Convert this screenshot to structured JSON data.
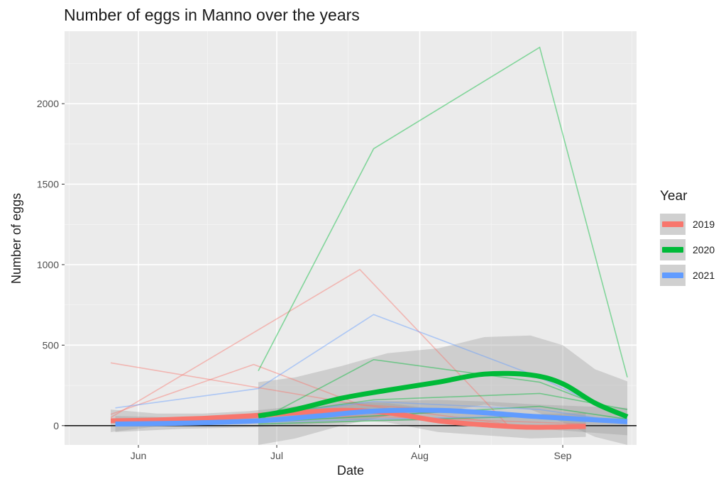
{
  "chart_data": {
    "type": "line",
    "title": "Number of eggs in Manno over the years",
    "xlabel": "Date",
    "ylabel": "Number of eggs",
    "x_ticks": [
      "Jun",
      "Jul",
      "Aug",
      "Sep"
    ],
    "y_ticks": [
      0,
      500,
      1000,
      1500,
      2000
    ],
    "xlim": [
      "2000-05-16",
      "2000-09-17"
    ],
    "ylim": [
      -120,
      2450
    ],
    "grid": true,
    "legend_title": "Year",
    "legend_position": "right",
    "reference_line": 0,
    "series": [
      {
        "name": "2019",
        "color": "#F8766D"
      },
      {
        "name": "2020",
        "color": "#00BA38"
      },
      {
        "name": "2021",
        "color": "#619CFF"
      }
    ],
    "traces": [
      {
        "year": "2019",
        "x": [
          "2000-05-26",
          "2000-07-19",
          "2000-08-20"
        ],
        "y": [
          390,
          130,
          70
        ]
      },
      {
        "year": "2019",
        "x": [
          "2000-05-26",
          "2000-06-26",
          "2000-07-19",
          "2000-08-20"
        ],
        "y": [
          70,
          380,
          130,
          10
        ]
      },
      {
        "year": "2019",
        "x": [
          "2000-05-26",
          "2000-07-19",
          "2000-08-20"
        ],
        "y": [
          50,
          970,
          5
        ]
      },
      {
        "year": "2019",
        "x": [
          "2000-05-26",
          "2000-07-19",
          "2000-09-06"
        ],
        "y": [
          20,
          60,
          10
        ]
      },
      {
        "year": "2020",
        "x": [
          "2000-06-27",
          "2000-07-22",
          "2000-08-27",
          "2000-09-15"
        ],
        "y": [
          340,
          1720,
          2350,
          300
        ]
      },
      {
        "year": "2020",
        "x": [
          "2000-06-27",
          "2000-07-22",
          "2000-08-27",
          "2000-09-15"
        ],
        "y": [
          30,
          410,
          270,
          60
        ]
      },
      {
        "year": "2020",
        "x": [
          "2000-06-27",
          "2000-07-22",
          "2000-08-27",
          "2000-09-15"
        ],
        "y": [
          60,
          160,
          200,
          100
        ]
      },
      {
        "year": "2020",
        "x": [
          "2000-06-27",
          "2000-07-22",
          "2000-08-27",
          "2000-09-15"
        ],
        "y": [
          20,
          60,
          120,
          40
        ]
      },
      {
        "year": "2020",
        "x": [
          "2000-06-27",
          "2000-07-22",
          "2000-08-27",
          "2000-09-15"
        ],
        "y": [
          10,
          30,
          60,
          20
        ]
      },
      {
        "year": "2021",
        "x": [
          "2000-05-27",
          "2000-06-27",
          "2000-07-22",
          "2000-08-27",
          "2000-09-15"
        ],
        "y": [
          110,
          230,
          690,
          300,
          40
        ]
      },
      {
        "year": "2021",
        "x": [
          "2000-05-27",
          "2000-06-27",
          "2000-07-22",
          "2000-08-27",
          "2000-09-15"
        ],
        "y": [
          30,
          60,
          150,
          100,
          20
        ]
      },
      {
        "year": "2021",
        "x": [
          "2000-05-27",
          "2000-06-27",
          "2000-07-22",
          "2000-08-27",
          "2000-09-15"
        ],
        "y": [
          10,
          20,
          40,
          60,
          10
        ]
      }
    ],
    "smooths": [
      {
        "year": "2019",
        "x": [
          "2000-05-26",
          "2000-06-05",
          "2000-06-15",
          "2000-06-25",
          "2000-07-05",
          "2000-07-15",
          "2000-07-25",
          "2000-08-05",
          "2000-08-15",
          "2000-08-25",
          "2000-09-06"
        ],
        "y": [
          30,
          35,
          45,
          60,
          80,
          95,
          80,
          30,
          5,
          -10,
          -5
        ],
        "ci_upper": [
          100,
          75,
          75,
          90,
          120,
          150,
          140,
          100,
          70,
          70,
          80
        ],
        "ci_lower": [
          -40,
          -5,
          15,
          30,
          40,
          40,
          20,
          -40,
          -60,
          -80,
          -70
        ]
      },
      {
        "year": "2020",
        "x": [
          "2000-06-27",
          "2000-07-05",
          "2000-07-15",
          "2000-07-25",
          "2000-08-05",
          "2000-08-15",
          "2000-08-25",
          "2000-09-01",
          "2000-09-08",
          "2000-09-15"
        ],
        "y": [
          60,
          100,
          170,
          220,
          270,
          320,
          315,
          260,
          140,
          55
        ],
        "ci_upper": [
          270,
          300,
          370,
          450,
          480,
          550,
          560,
          500,
          350,
          275
        ],
        "ci_lower": [
          -120,
          -80,
          0,
          60,
          80,
          130,
          100,
          20,
          -70,
          -120
        ]
      },
      {
        "year": "2021",
        "x": [
          "2000-05-27",
          "2000-06-10",
          "2000-06-27",
          "2000-07-10",
          "2000-07-22",
          "2000-08-05",
          "2000-08-15",
          "2000-08-27",
          "2000-09-15"
        ],
        "y": [
          10,
          15,
          30,
          60,
          90,
          95,
          80,
          55,
          25
        ],
        "ci_upper": [
          60,
          50,
          70,
          110,
          150,
          160,
          150,
          130,
          110
        ],
        "ci_lower": [
          -40,
          -20,
          -10,
          10,
          30,
          30,
          10,
          -20,
          -60
        ]
      }
    ]
  }
}
